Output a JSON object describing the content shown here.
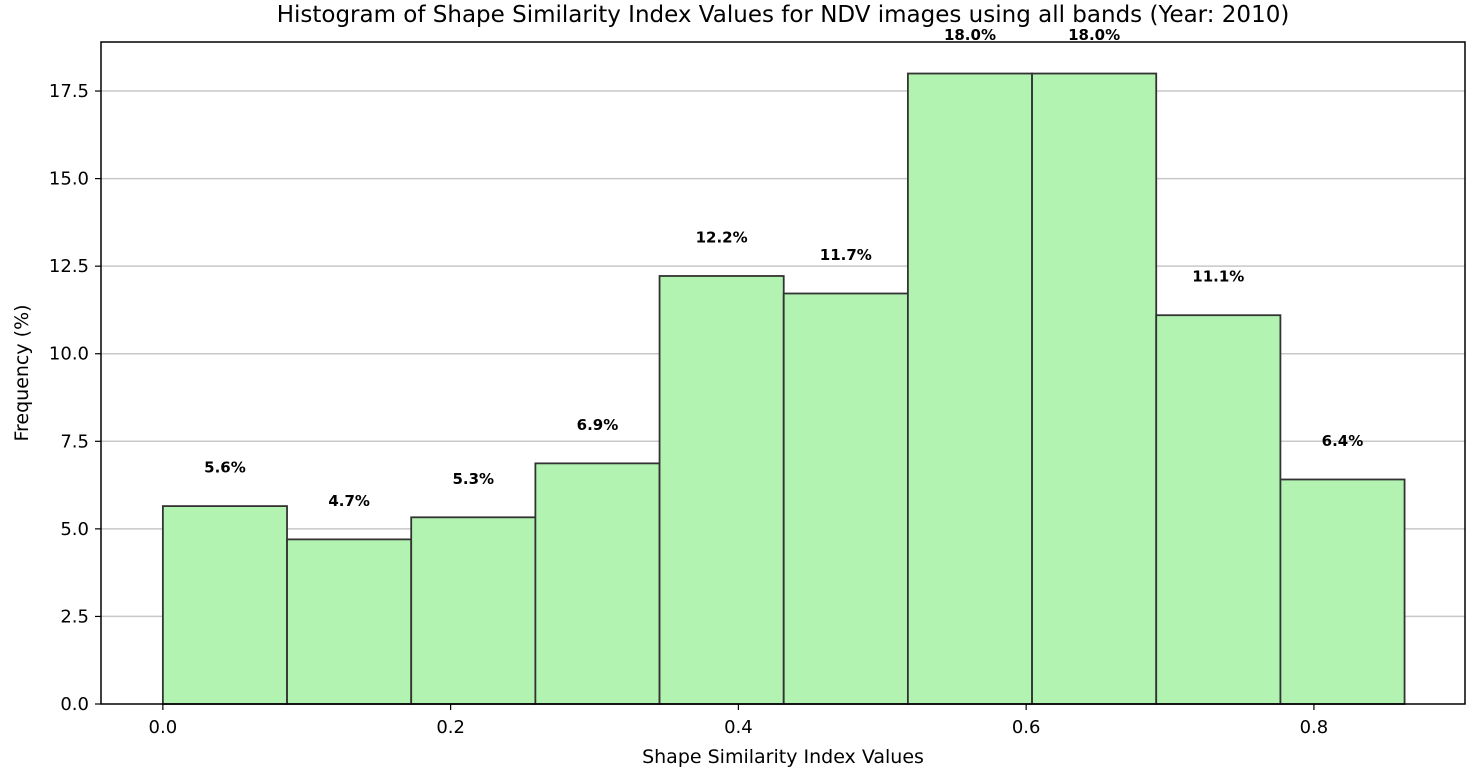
{
  "chart_data": {
    "type": "bar",
    "title": "Histogram of Shape Similarity Index Values for NDV images using all bands (Year: 2010)",
    "xlabel": "Shape Similarity Index Values",
    "ylabel": "Frequency (%)",
    "xlim": [
      -0.043,
      0.905
    ],
    "ylim": [
      0,
      18.9
    ],
    "bin_edges": [
      0.0,
      0.0863,
      0.1726,
      0.2589,
      0.3452,
      0.4315,
      0.5178,
      0.6041,
      0.6904,
      0.7767,
      0.863
    ],
    "values": [
      5.65,
      4.7,
      5.33,
      6.87,
      12.22,
      11.72,
      18.0,
      18.0,
      11.1,
      6.41
    ],
    "value_labels": [
      "5.6%",
      "4.7%",
      "5.3%",
      "6.9%",
      "12.2%",
      "11.7%",
      "18.0%",
      "18.0%",
      "11.1%",
      "6.4%"
    ],
    "x_ticks": [
      0.0,
      0.2,
      0.4,
      0.6,
      0.8
    ],
    "x_tick_labels": [
      "0.0",
      "0.2",
      "0.4",
      "0.6",
      "0.8"
    ],
    "y_ticks": [
      0.0,
      2.5,
      5.0,
      7.5,
      10.0,
      12.5,
      15.0,
      17.5
    ],
    "y_tick_labels": [
      "0.0",
      "2.5",
      "5.0",
      "7.5",
      "10.0",
      "12.5",
      "15.0",
      "17.5"
    ],
    "grid": "horizontal",
    "colors": {
      "bar_fill": "#b2f3b2",
      "bar_edge": "#333333",
      "grid": "#c8c8c8"
    }
  }
}
